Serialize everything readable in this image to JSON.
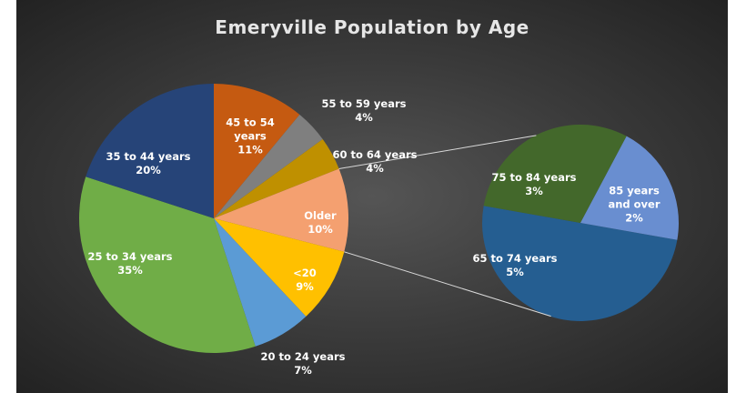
{
  "chart_data": {
    "type": "pie-of-pie",
    "title": "Emeryville Population by Age",
    "categories": [
      "45 to 54 years",
      "55 to 59 years",
      "60 to 64 years",
      "Older",
      "<20",
      "20 to 24 years",
      "25 to 34 years",
      "35 to 44 years"
    ],
    "values": [
      11,
      4,
      4,
      10,
      9,
      7,
      35,
      20
    ],
    "value_labels": [
      "11%",
      "4%",
      "4%",
      "10%",
      "9%",
      "7%",
      "35%",
      "20%"
    ],
    "colors": [
      "#c55a11",
      "#7f7f7f",
      "#bf9000",
      "#f4a070",
      "#ffc000",
      "#5b9bd5",
      "#70ad47",
      "#264478"
    ],
    "secondary": {
      "categories": [
        "65 to 74 years",
        "75 to 84 years",
        "85 years and over"
      ],
      "values": [
        5,
        3,
        2
      ],
      "value_labels": [
        "5%",
        "3%",
        "2%"
      ],
      "colors": [
        "#255e91",
        "#43682b",
        "#698ed0"
      ]
    }
  }
}
